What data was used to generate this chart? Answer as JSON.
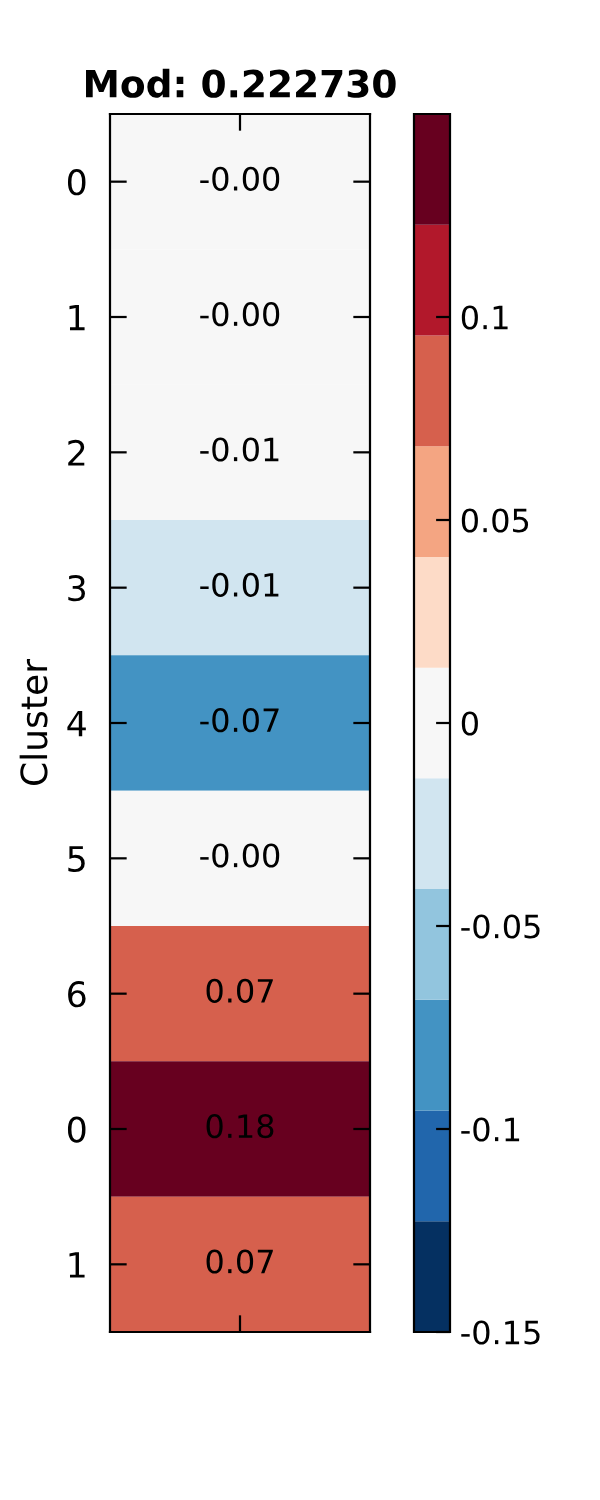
{
  "chart_data": {
    "type": "heatmap",
    "title": "Mod: 0.222730",
    "ylabel": "Cluster",
    "categories": [
      null
    ],
    "y_categories": [
      "0",
      "1",
      "2",
      "3",
      "4",
      "5",
      "6",
      "0",
      "1"
    ],
    "cells": [
      [
        -0.001
      ],
      [
        -0.001
      ],
      [
        -0.01
      ],
      [
        -0.014
      ],
      [
        -0.07
      ],
      [
        -0.001
      ],
      [
        0.07
      ],
      [
        0.18
      ],
      [
        0.07
      ]
    ],
    "cell_labels": [
      [
        "-0.00"
      ],
      [
        "-0.00"
      ],
      [
        "-0.01"
      ],
      [
        "-0.01"
      ],
      [
        "-0.07"
      ],
      [
        "-0.00"
      ],
      [
        "0.07"
      ],
      [
        "0.18"
      ],
      [
        "0.07"
      ]
    ],
    "clim": [
      -0.15,
      0.15
    ],
    "cticks": [
      -0.15,
      -0.1,
      -0.05,
      0,
      0.05,
      0.1
    ]
  }
}
